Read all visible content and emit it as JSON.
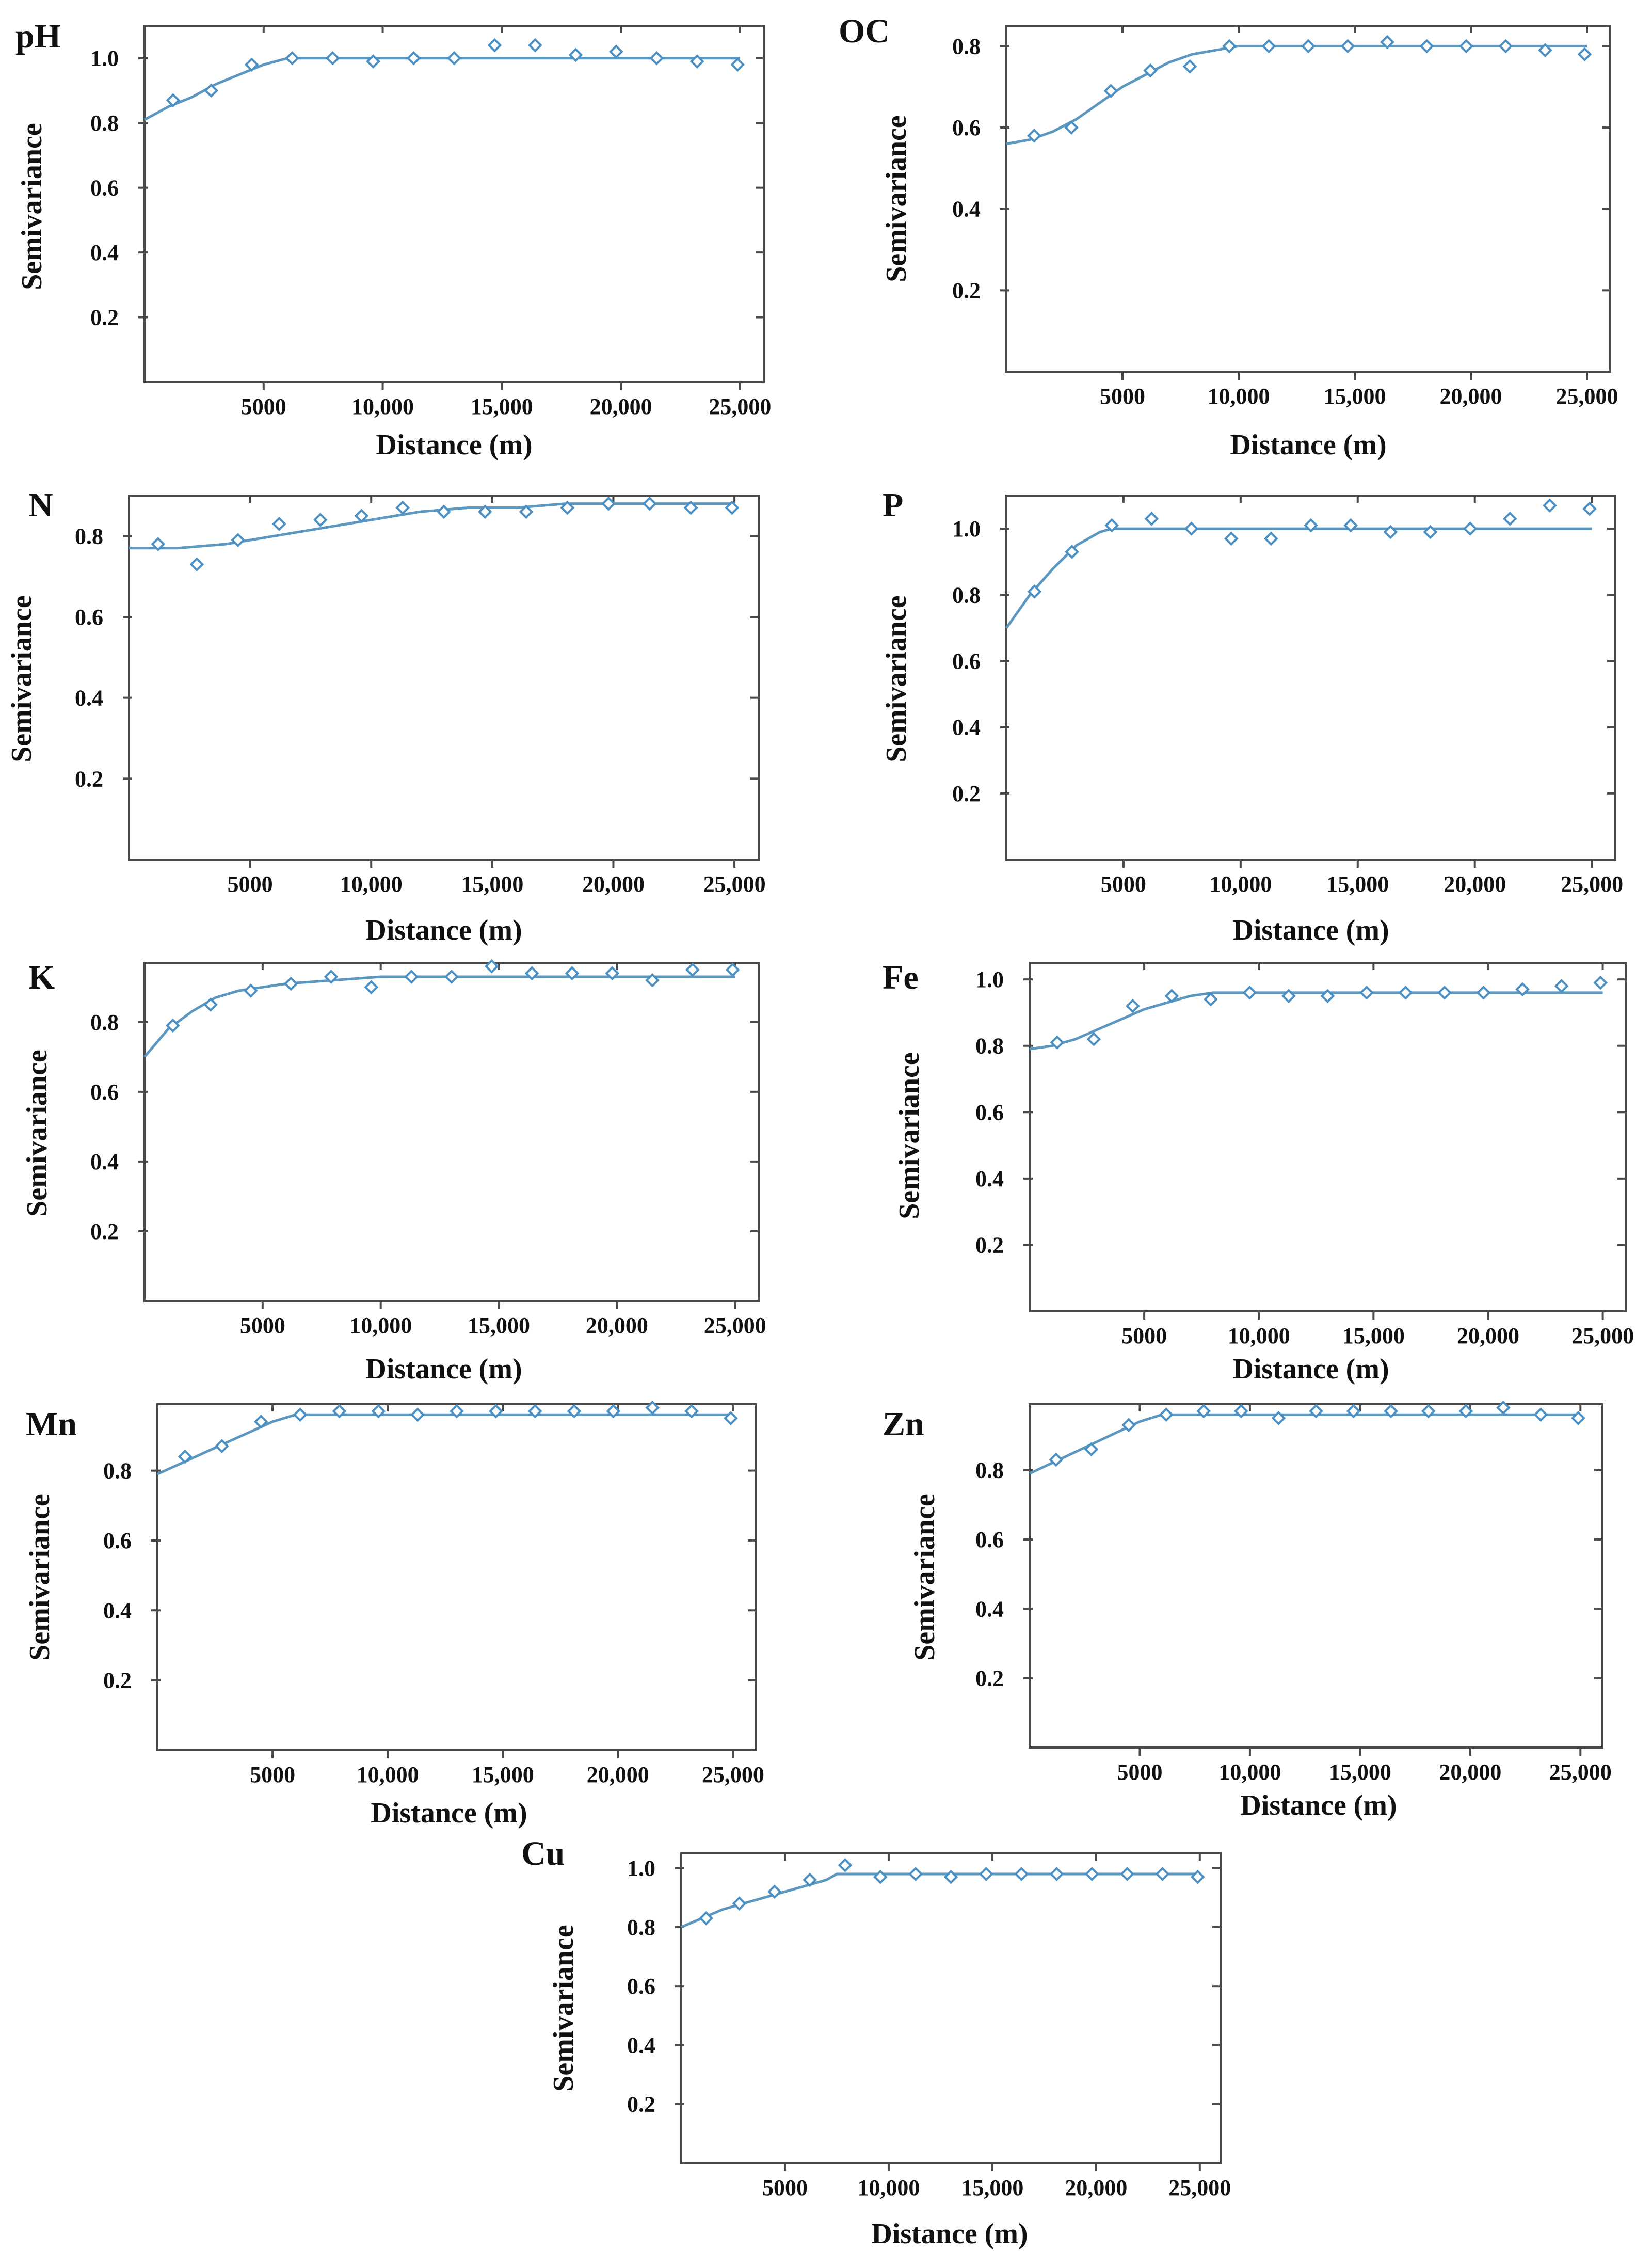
{
  "colors": {
    "curve": "#5b97bf",
    "marker": "#4a8fc4",
    "axis": "#4a4a4a",
    "text": "#111111"
  },
  "chart_data": [
    {
      "type": "scatter",
      "title": "pH",
      "xlabel": "Distance (m)",
      "ylabel": "Semivariance",
      "xlim": [
        0,
        26000
      ],
      "ylim": [
        0,
        1.1
      ],
      "xticks": [
        5000,
        10000,
        15000,
        20000,
        25000
      ],
      "xtick_labels": [
        "5000",
        "10,000",
        "15,000",
        "20,000",
        "25,000"
      ],
      "yticks": [
        0.2,
        0.4,
        0.6,
        0.8,
        1.0
      ],
      "ytick_labels": [
        "0.2",
        "0.4",
        "0.6",
        "0.8",
        "1.0"
      ],
      "series": [
        {
          "x": [
            1200,
            2800,
            4500,
            6200,
            7900,
            9600,
            11300,
            13000,
            14700,
            16400,
            18100,
            19800,
            21500,
            23200,
            24900
          ],
          "y": [
            0.87,
            0.9,
            0.98,
            1.0,
            1.0,
            0.99,
            1.0,
            1.0,
            1.04,
            1.04,
            1.01,
            1.02,
            1.0,
            0.99,
            0.98
          ]
        }
      ],
      "model": {
        "x": [
          0,
          1000,
          2000,
          3000,
          4000,
          5000,
          6000,
          7000,
          10000,
          15000,
          20000,
          25000
        ],
        "y": [
          0.81,
          0.85,
          0.88,
          0.92,
          0.95,
          0.98,
          1.0,
          1.0,
          1.0,
          1.0,
          1.0,
          1.0
        ]
      }
    },
    {
      "type": "scatter",
      "title": "OC",
      "xlabel": "Distance (m)",
      "ylabel": "Semivariance",
      "xlim": [
        0,
        26000
      ],
      "ylim": [
        0,
        0.85
      ],
      "xticks": [
        5000,
        10000,
        15000,
        20000,
        25000
      ],
      "xtick_labels": [
        "5000",
        "10,000",
        "15,000",
        "20,000",
        "25,000"
      ],
      "yticks": [
        0.2,
        0.4,
        0.6,
        0.8
      ],
      "ytick_labels": [
        "0.2",
        "0.4",
        "0.6",
        "0.8"
      ],
      "series": [
        {
          "x": [
            1200,
            2800,
            4500,
            6200,
            7900,
            9600,
            11300,
            13000,
            14700,
            16400,
            18100,
            19800,
            21500,
            23200,
            24900
          ],
          "y": [
            0.58,
            0.6,
            0.69,
            0.74,
            0.75,
            0.8,
            0.8,
            0.8,
            0.8,
            0.81,
            0.8,
            0.8,
            0.8,
            0.79,
            0.78
          ]
        }
      ],
      "model": {
        "x": [
          0,
          1000,
          2000,
          3000,
          4000,
          5000,
          6000,
          7000,
          8000,
          9000,
          10000,
          12000,
          15000,
          20000,
          25000
        ],
        "y": [
          0.56,
          0.57,
          0.59,
          0.62,
          0.66,
          0.7,
          0.73,
          0.76,
          0.78,
          0.79,
          0.8,
          0.8,
          0.8,
          0.8,
          0.8
        ]
      }
    },
    {
      "type": "scatter",
      "title": "N",
      "xlabel": "Distance (m)",
      "ylabel": "Semivariance",
      "xlim": [
        0,
        26000
      ],
      "ylim": [
        0,
        0.9
      ],
      "xticks": [
        5000,
        10000,
        15000,
        20000,
        25000
      ],
      "xtick_labels": [
        "5000",
        "10,000",
        "15,000",
        "20,000",
        "25,000"
      ],
      "yticks": [
        0.2,
        0.4,
        0.6,
        0.8
      ],
      "ytick_labels": [
        "0.2",
        "0.4",
        "0.6",
        "0.8"
      ],
      "series": [
        {
          "x": [
            1200,
            2800,
            4500,
            6200,
            7900,
            9600,
            11300,
            13000,
            14700,
            16400,
            18100,
            19800,
            21500,
            23200,
            24900
          ],
          "y": [
            0.78,
            0.73,
            0.79,
            0.83,
            0.84,
            0.85,
            0.87,
            0.86,
            0.86,
            0.86,
            0.87,
            0.88,
            0.88,
            0.87,
            0.87
          ]
        }
      ],
      "model": {
        "x": [
          0,
          2000,
          4000,
          6000,
          8000,
          10000,
          12000,
          14000,
          16000,
          18000,
          20000,
          25000
        ],
        "y": [
          0.77,
          0.77,
          0.78,
          0.8,
          0.82,
          0.84,
          0.86,
          0.87,
          0.87,
          0.88,
          0.88,
          0.88
        ]
      }
    },
    {
      "type": "scatter",
      "title": "P",
      "xlabel": "Distance (m)",
      "ylabel": "Semivariance",
      "xlim": [
        0,
        26000
      ],
      "ylim": [
        0,
        1.1
      ],
      "xticks": [
        5000,
        10000,
        15000,
        20000,
        25000
      ],
      "xtick_labels": [
        "5000",
        "10,000",
        "15,000",
        "20,000",
        "25,000"
      ],
      "yticks": [
        0.2,
        0.4,
        0.6,
        0.8,
        1.0
      ],
      "ytick_labels": [
        "0.2",
        "0.4",
        "0.6",
        "0.8",
        "1.0"
      ],
      "series": [
        {
          "x": [
            1200,
            2800,
            4500,
            6200,
            7900,
            9600,
            11300,
            13000,
            14700,
            16400,
            18100,
            19800,
            21500,
            23200,
            24900
          ],
          "y": [
            0.81,
            0.93,
            1.01,
            1.03,
            1.0,
            0.97,
            0.97,
            1.01,
            1.01,
            0.99,
            0.99,
            1.0,
            1.03,
            1.07,
            1.06
          ]
        }
      ],
      "model": {
        "x": [
          0,
          1000,
          2000,
          3000,
          4000,
          4500,
          6000,
          10000,
          15000,
          20000,
          25000
        ],
        "y": [
          0.7,
          0.8,
          0.88,
          0.95,
          0.99,
          1.0,
          1.0,
          1.0,
          1.0,
          1.0,
          1.0
        ]
      }
    },
    {
      "type": "scatter",
      "title": "K",
      "xlabel": "Distance (m)",
      "ylabel": "Semivariance",
      "xlim": [
        0,
        26000
      ],
      "ylim": [
        0,
        0.97
      ],
      "xticks": [
        5000,
        10000,
        15000,
        20000,
        25000
      ],
      "xtick_labels": [
        "5000",
        "10,000",
        "15,000",
        "20,000",
        "25,000"
      ],
      "yticks": [
        0.2,
        0.4,
        0.6,
        0.8
      ],
      "ytick_labels": [
        "0.2",
        "0.4",
        "0.6",
        "0.8"
      ],
      "series": [
        {
          "x": [
            1200,
            2800,
            4500,
            6200,
            7900,
            9600,
            11300,
            13000,
            14700,
            16400,
            18100,
            19800,
            21500,
            23200,
            24900
          ],
          "y": [
            0.79,
            0.85,
            0.89,
            0.91,
            0.93,
            0.9,
            0.93,
            0.93,
            0.96,
            0.94,
            0.94,
            0.94,
            0.92,
            0.95,
            0.95
          ]
        }
      ],
      "model": {
        "x": [
          0,
          500,
          1000,
          2000,
          3000,
          4000,
          6000,
          8000,
          10000,
          15000,
          20000,
          25000
        ],
        "y": [
          0.7,
          0.74,
          0.78,
          0.83,
          0.87,
          0.89,
          0.91,
          0.92,
          0.93,
          0.93,
          0.93,
          0.93
        ]
      }
    },
    {
      "type": "scatter",
      "title": "Fe",
      "xlabel": "Distance (m)",
      "ylabel": "Semivariance",
      "xlim": [
        0,
        26000
      ],
      "ylim": [
        0,
        1.05
      ],
      "xticks": [
        5000,
        10000,
        15000,
        20000,
        25000
      ],
      "xtick_labels": [
        "5000",
        "10,000",
        "15,000",
        "20,000",
        "25,000"
      ],
      "yticks": [
        0.2,
        0.4,
        0.6,
        0.8,
        1.0
      ],
      "ytick_labels": [
        "0.2",
        "0.4",
        "0.6",
        "0.8",
        "1.0"
      ],
      "series": [
        {
          "x": [
            1200,
            2800,
            4500,
            6200,
            7900,
            9600,
            11300,
            13000,
            14700,
            16400,
            18100,
            19800,
            21500,
            23200,
            24900
          ],
          "y": [
            0.81,
            0.82,
            0.92,
            0.95,
            0.94,
            0.96,
            0.95,
            0.95,
            0.96,
            0.96,
            0.96,
            0.96,
            0.97,
            0.98,
            0.99
          ]
        }
      ],
      "model": {
        "x": [
          0,
          1000,
          2000,
          3000,
          4000,
          5000,
          6000,
          7000,
          8000,
          10000,
          15000,
          20000,
          25000
        ],
        "y": [
          0.79,
          0.8,
          0.82,
          0.85,
          0.88,
          0.91,
          0.93,
          0.95,
          0.96,
          0.96,
          0.96,
          0.96,
          0.96
        ]
      }
    },
    {
      "type": "scatter",
      "title": "Mn",
      "xlabel": "Distance (m)",
      "ylabel": "Semivariance",
      "xlim": [
        0,
        26000
      ],
      "ylim": [
        0,
        0.99
      ],
      "xticks": [
        5000,
        10000,
        15000,
        20000,
        25000
      ],
      "xtick_labels": [
        "5000",
        "10,000",
        "15,000",
        "20,000",
        "25,000"
      ],
      "yticks": [
        0.2,
        0.4,
        0.6,
        0.8
      ],
      "ytick_labels": [
        "0.2",
        "0.4",
        "0.6",
        "0.8"
      ],
      "series": [
        {
          "x": [
            1200,
            2800,
            4500,
            6200,
            7900,
            9600,
            11300,
            13000,
            14700,
            16400,
            18100,
            19800,
            21500,
            23200,
            24900
          ],
          "y": [
            0.84,
            0.87,
            0.94,
            0.96,
            0.97,
            0.97,
            0.96,
            0.97,
            0.97,
            0.97,
            0.97,
            0.97,
            0.98,
            0.97,
            0.95
          ]
        }
      ],
      "model": {
        "x": [
          0,
          1000,
          2000,
          3000,
          4000,
          5000,
          6000,
          7000,
          10000,
          15000,
          20000,
          25000
        ],
        "y": [
          0.79,
          0.82,
          0.85,
          0.88,
          0.91,
          0.94,
          0.96,
          0.96,
          0.96,
          0.96,
          0.96,
          0.96
        ]
      }
    },
    {
      "type": "scatter",
      "title": "Zn",
      "xlabel": "Distance (m)",
      "ylabel": "Semivariance",
      "xlim": [
        0,
        26000
      ],
      "ylim": [
        0,
        0.99
      ],
      "xticks": [
        5000,
        10000,
        15000,
        20000,
        25000
      ],
      "xtick_labels": [
        "5000",
        "10,000",
        "15,000",
        "20,000",
        "25,000"
      ],
      "yticks": [
        0.2,
        0.4,
        0.6,
        0.8
      ],
      "ytick_labels": [
        "0.2",
        "0.4",
        "0.6",
        "0.8"
      ],
      "series": [
        {
          "x": [
            1200,
            2800,
            4500,
            6200,
            7900,
            9600,
            11300,
            13000,
            14700,
            16400,
            18100,
            19800,
            21500,
            23200,
            24900
          ],
          "y": [
            0.83,
            0.86,
            0.93,
            0.96,
            0.97,
            0.97,
            0.95,
            0.97,
            0.97,
            0.97,
            0.97,
            0.97,
            0.98,
            0.96,
            0.95
          ]
        }
      ],
      "model": {
        "x": [
          0,
          1000,
          2000,
          3000,
          4000,
          5000,
          6000,
          7000,
          10000,
          15000,
          20000,
          25000
        ],
        "y": [
          0.79,
          0.82,
          0.85,
          0.88,
          0.91,
          0.94,
          0.96,
          0.96,
          0.96,
          0.96,
          0.96,
          0.96
        ]
      }
    },
    {
      "type": "scatter",
      "title": "Cu",
      "xlabel": "Distance (m)",
      "ylabel": "Semivariance",
      "xlim": [
        0,
        26000
      ],
      "ylim": [
        0,
        1.05
      ],
      "xticks": [
        5000,
        10000,
        15000,
        20000,
        25000
      ],
      "xtick_labels": [
        "5000",
        "10,000",
        "15,000",
        "20,000",
        "25,000"
      ],
      "yticks": [
        0.2,
        0.4,
        0.6,
        0.8,
        1.0
      ],
      "ytick_labels": [
        "0.2",
        "0.4",
        "0.6",
        "0.8",
        "1.0"
      ],
      "series": [
        {
          "x": [
            1200,
            2800,
            4500,
            6200,
            7900,
            9600,
            11300,
            13000,
            14700,
            16400,
            18100,
            19800,
            21500,
            23200,
            24900
          ],
          "y": [
            0.83,
            0.88,
            0.92,
            0.96,
            1.01,
            0.97,
            0.98,
            0.97,
            0.98,
            0.98,
            0.98,
            0.98,
            0.98,
            0.98,
            0.97
          ]
        }
      ],
      "model": {
        "x": [
          0,
          1000,
          2000,
          3000,
          4000,
          5000,
          6000,
          7000,
          7500,
          10000,
          15000,
          20000,
          25000
        ],
        "y": [
          0.8,
          0.83,
          0.86,
          0.88,
          0.9,
          0.92,
          0.94,
          0.96,
          0.98,
          0.98,
          0.98,
          0.98,
          0.98
        ]
      }
    }
  ]
}
